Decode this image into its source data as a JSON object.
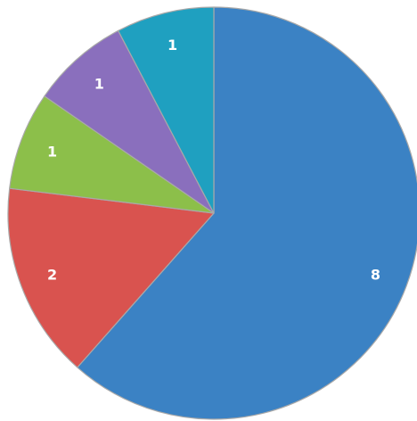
{
  "chart_data": {
    "type": "pie",
    "title": "",
    "legend": "none",
    "start_angle_deg": 0,
    "direction": "clockwise",
    "slices": [
      {
        "label": "",
        "value": 8,
        "data_label": "8",
        "color": "#3b82c4"
      },
      {
        "label": "",
        "value": 2,
        "data_label": "2",
        "color": "#d9534f"
      },
      {
        "label": "",
        "value": 1,
        "data_label": "1",
        "color": "#8cbf4a"
      },
      {
        "label": "",
        "value": 1,
        "data_label": "1",
        "color": "#8a6fbd"
      },
      {
        "label": "",
        "value": 1,
        "data_label": "1",
        "color": "#1fa0c0"
      }
    ]
  }
}
